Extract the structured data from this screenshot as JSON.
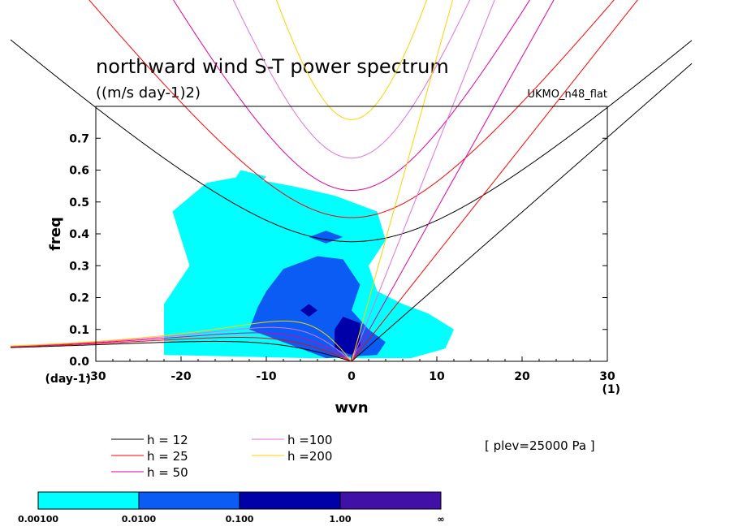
{
  "chart_data": {
    "type": "heatmap",
    "title": "northward wind S-T power spectrum",
    "subtitle": "((m/s day-1)2)",
    "model_label": "UKMO_n48_flat",
    "xlabel": "wvn",
    "ylabel": "freq",
    "x_unit": "(1)",
    "y_unit": "(day-1)",
    "xlim": [
      -30,
      30
    ],
    "ylim": [
      0,
      0.8
    ],
    "x_ticks": [
      "-30",
      "-20",
      "-10",
      "0",
      "10",
      "20",
      "30"
    ],
    "y_ticks": [
      "0.0",
      "0.1",
      "0.2",
      "0.3",
      "0.4",
      "0.5",
      "0.6",
      "0.7"
    ],
    "annotation": "[ plev=25000 Pa ]",
    "dispersion_curves": [
      {
        "name": "h = 12",
        "h": 12,
        "color": "#000000"
      },
      {
        "name": "h = 25",
        "h": 25,
        "color": "#ff0000"
      },
      {
        "name": "h = 50",
        "h": 50,
        "color": "#e000a0"
      },
      {
        "name": "h =100",
        "h": 100,
        "color": "#e070e0"
      },
      {
        "name": "h =200",
        "h": 200,
        "color": "#ffd000"
      }
    ],
    "colorbar": {
      "labels": [
        "0.00100",
        "0.0100",
        "0.100",
        "1.00",
        "∞"
      ],
      "colors": [
        "#00ffff",
        "#0a5cf5",
        "#0000a8",
        "#4010a8"
      ]
    },
    "regions": [
      {
        "level": 0,
        "polygon": [
          [
            -22,
            0.02
          ],
          [
            -22,
            0.18
          ],
          [
            -19,
            0.3
          ],
          [
            -21,
            0.47
          ],
          [
            -17,
            0.56
          ],
          [
            -13,
            0.58
          ],
          [
            -7,
            0.55
          ],
          [
            -2,
            0.52
          ],
          [
            3,
            0.47
          ],
          [
            4,
            0.38
          ],
          [
            2,
            0.3
          ],
          [
            3,
            0.22
          ],
          [
            6,
            0.18
          ],
          [
            9,
            0.15
          ],
          [
            12,
            0.1
          ],
          [
            11,
            0.04
          ],
          [
            7,
            0.01
          ],
          [
            -5,
            0.01
          ]
        ]
      },
      {
        "level": 0,
        "polygon": [
          [
            -13,
            0.6
          ],
          [
            -14,
            0.56
          ],
          [
            -11,
            0.55
          ],
          [
            -10,
            0.58
          ]
        ]
      },
      {
        "level": 1,
        "polygon": [
          [
            -10,
            0.22
          ],
          [
            -8,
            0.29
          ],
          [
            -4,
            0.33
          ],
          [
            -1,
            0.32
          ],
          [
            1,
            0.24
          ],
          [
            0,
            0.16
          ],
          [
            2,
            0.1
          ],
          [
            4,
            0.06
          ],
          [
            3,
            0.02
          ],
          [
            -3,
            0.01
          ],
          [
            -8,
            0.06
          ],
          [
            -12,
            0.1
          ],
          [
            -11,
            0.17
          ]
        ]
      },
      {
        "level": 1,
        "polygon": [
          [
            -5,
            0.39
          ],
          [
            -3,
            0.41
          ],
          [
            -1,
            0.39
          ],
          [
            -3,
            0.37
          ]
        ]
      },
      {
        "level": 2,
        "polygon": [
          [
            -2,
            0.1
          ],
          [
            -1,
            0.14
          ],
          [
            1,
            0.12
          ],
          [
            1,
            0.05
          ],
          [
            0,
            0.02
          ],
          [
            -2,
            0.04
          ]
        ]
      },
      {
        "level": 2,
        "polygon": [
          [
            -6,
            0.16
          ],
          [
            -5,
            0.18
          ],
          [
            -4,
            0.16
          ],
          [
            -5,
            0.14
          ]
        ]
      }
    ]
  }
}
